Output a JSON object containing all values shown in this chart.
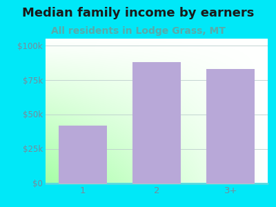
{
  "title": "Median family income by earners",
  "subtitle": "All residents in Lodge Grass, MT",
  "categories": [
    "1",
    "2",
    "3+"
  ],
  "values": [
    42000,
    88000,
    83000
  ],
  "bar_color": "#b8a8d8",
  "background_color": "#00e8f8",
  "title_fontsize": 13,
  "subtitle_fontsize": 10,
  "title_color": "#1a1a1a",
  "subtitle_color": "#5aaaaa",
  "tick_label_color": "#7a8a9a",
  "ylim": [
    0,
    105000
  ],
  "yticks": [
    0,
    25000,
    50000,
    75000,
    100000
  ],
  "ytick_labels": [
    "$0",
    "$25k",
    "$50k",
    "$75k",
    "$100k"
  ],
  "grad_top": "#d0eedd",
  "grad_bottom": "#f8fffc"
}
